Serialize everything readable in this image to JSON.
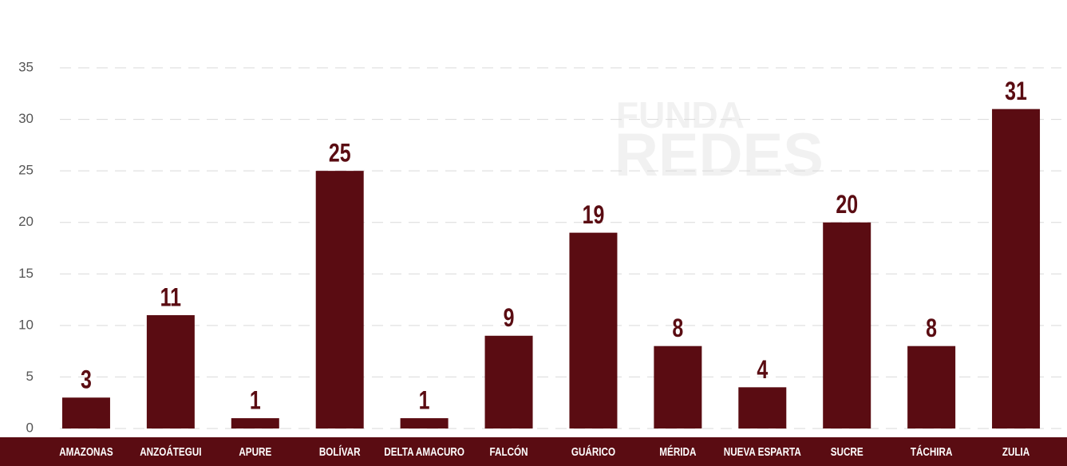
{
  "chart_data": {
    "type": "bar",
    "watermark": [
      "FUNDA",
      "REDES"
    ],
    "categories": [
      "AMAZONAS",
      "ANZOÁTEGUI",
      "APURE",
      "BOLÍVAR",
      "DELTA  AMACURO",
      "FALCÓN",
      "GUÁRICO",
      "MÉRIDA",
      "NUEVA ESPARTA",
      "SUCRE",
      "TÁCHIRA",
      "ZULIA"
    ],
    "values": [
      3,
      11,
      1,
      25,
      1,
      9,
      19,
      8,
      4,
      20,
      8,
      31
    ],
    "color": "#5a0c12",
    "ylim": [
      0,
      35
    ],
    "yticks": [
      0,
      5,
      10,
      15,
      20,
      25,
      30,
      35
    ],
    "grid": true
  }
}
